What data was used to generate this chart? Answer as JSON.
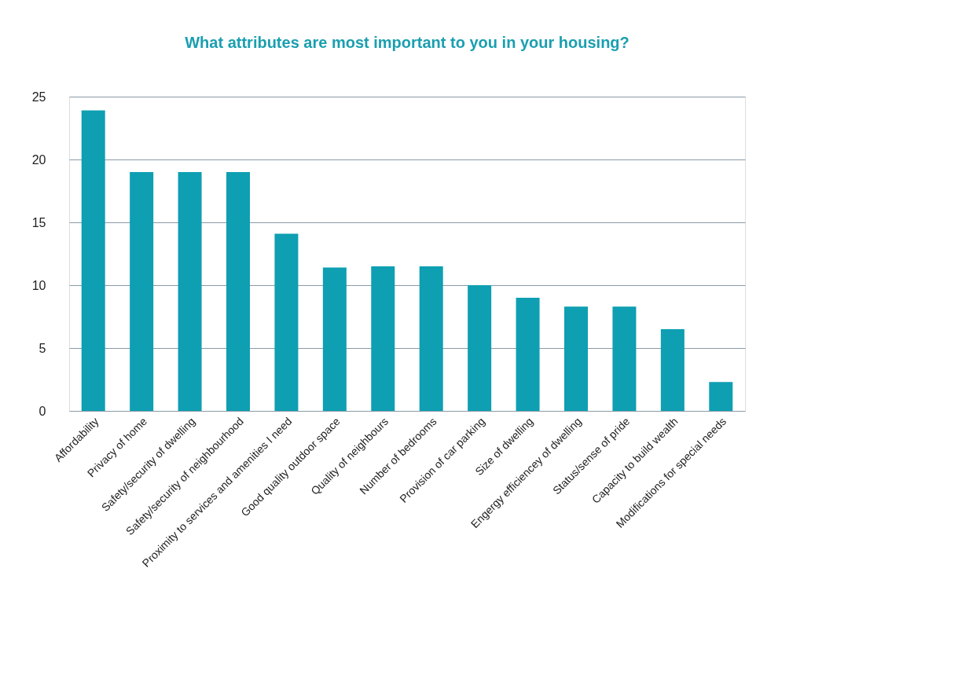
{
  "chart_data": {
    "type": "bar",
    "title": "What attributes are most important to you in your housing?",
    "categories": [
      "Affordability",
      "Privacy of home",
      "Safety/security of dwelling",
      "Safety/security of neighbourhood",
      "Proximity to services and amenities I need",
      "Good quality outdoor space",
      "Quality of neighbours",
      "Number of bedrooms",
      "Provision of car parking",
      "Size of dwelling",
      "Engergy efficiencey of dwelling",
      "Status/sense of pride",
      "Capacity to build wealth",
      "Modifications for special needs"
    ],
    "values": [
      23.9,
      19,
      19,
      19,
      14.1,
      11.4,
      11.5,
      11.5,
      10,
      9,
      8.3,
      8.3,
      6.5,
      2.3
    ],
    "color": "#0e9fb2",
    "ylim": [
      0,
      25
    ],
    "yticks": [
      0,
      5,
      10,
      15,
      20,
      25
    ],
    "grid": "y"
  }
}
